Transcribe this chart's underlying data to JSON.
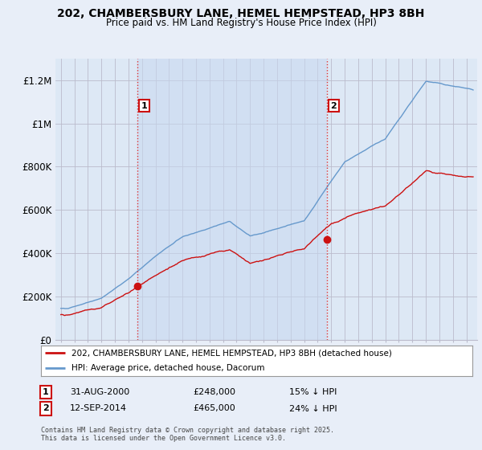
{
  "title_line1": "202, CHAMBERSBURY LANE, HEMEL HEMPSTEAD, HP3 8BH",
  "title_line2": "Price paid vs. HM Land Registry's House Price Index (HPI)",
  "ylabel_ticks": [
    "£0",
    "£200K",
    "£400K",
    "£600K",
    "£800K",
    "£1M",
    "£1.2M"
  ],
  "ytick_values": [
    0,
    200000,
    400000,
    600000,
    800000,
    1000000,
    1200000
  ],
  "ylim": [
    0,
    1300000
  ],
  "xlim_start": 1994.6,
  "xlim_end": 2025.8,
  "hpi_color": "#6699cc",
  "price_color": "#cc1111",
  "purchase1_x": 2000.67,
  "purchase1_y": 248000,
  "purchase2_x": 2014.71,
  "purchase2_y": 465000,
  "vline_color": "#dd3333",
  "legend_line1": "202, CHAMBERSBURY LANE, HEMEL HEMPSTEAD, HP3 8BH (detached house)",
  "legend_line2": "HPI: Average price, detached house, Dacorum",
  "footnote": "Contains HM Land Registry data © Crown copyright and database right 2025.\nThis data is licensed under the Open Government Licence v3.0.",
  "background_color": "#e8eef8",
  "plot_bg_color": "#dde8f5",
  "grid_color": "#bbbbcc"
}
